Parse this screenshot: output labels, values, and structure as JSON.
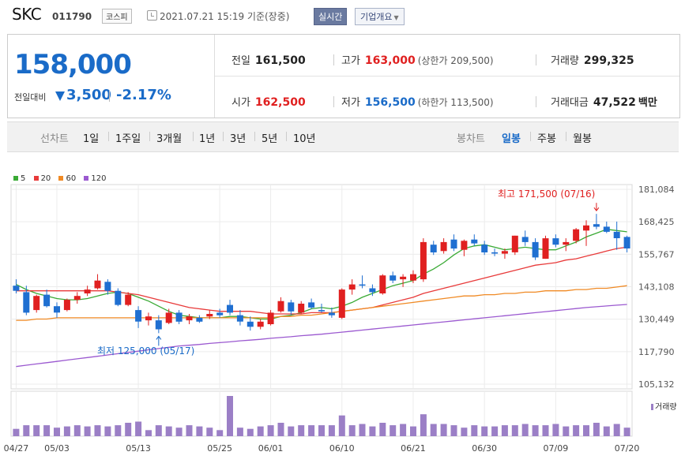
{
  "header": {
    "company": "SKC",
    "code": "011790",
    "market": "코스피",
    "datetime": "2021.07.21 15:19 기준(장중)",
    "realtime_btn": "실시간",
    "overview_btn": "기업개요"
  },
  "quote": {
    "price": "158,000",
    "change_label": "전일대비",
    "change_value": "3,500",
    "change_pct": "-2.17%",
    "prev_close_label": "전일",
    "prev_close": "161,500",
    "high_label": "고가",
    "high": "163,000",
    "upper_limit": "(상한가 209,500)",
    "volume_label": "거래량",
    "volume": "299,325",
    "open_label": "시가",
    "open": "162,500",
    "low_label": "저가",
    "low": "156,500",
    "lower_limit": "(하한가 113,500)",
    "amount_label": "거래대금",
    "amount": "47,522",
    "amount_unit": "백만"
  },
  "tabs": {
    "line_chart": "선차트",
    "ranges": [
      "1일",
      "1주일",
      "3개월",
      "1년",
      "3년",
      "5년",
      "10년"
    ],
    "candle_chart": "봉차트",
    "candle": [
      "일봉",
      "주봉",
      "월봉"
    ],
    "active_candle": "일봉"
  },
  "legend": [
    {
      "label": "5",
      "color": "#3aaa35"
    },
    {
      "label": "20",
      "color": "#e83a3a"
    },
    {
      "label": "60",
      "color": "#f08a24"
    },
    {
      "label": "120",
      "color": "#9b59d0"
    }
  ],
  "annotations": {
    "max_label": "최고 171,500 (07/16)",
    "min_label": "최저 125,000 (05/17)"
  },
  "volume_label": "거래량",
  "chart_data": {
    "type": "candlestick",
    "y_ticks": [
      "181,084",
      "168,425",
      "155,767",
      "143,108",
      "130,449",
      "117,790",
      "105,132"
    ],
    "ylim": [
      105132,
      181084
    ],
    "x_ticks": [
      {
        "label": "04/27",
        "index": 0
      },
      {
        "label": "05/03",
        "index": 4
      },
      {
        "label": "05/13",
        "index": 12
      },
      {
        "label": "05/25",
        "index": 20
      },
      {
        "label": "06/01",
        "index": 25
      },
      {
        "label": "06/10",
        "index": 32
      },
      {
        "label": "06/21",
        "index": 39
      },
      {
        "label": "06/30",
        "index": 46
      },
      {
        "label": "07/09",
        "index": 53
      },
      {
        "label": "07/20",
        "index": 60
      }
    ],
    "candles": [
      [
        143500,
        146000,
        140500,
        141500
      ],
      [
        141000,
        143500,
        132000,
        133000
      ],
      [
        134000,
        140000,
        133000,
        139500
      ],
      [
        140000,
        142000,
        135000,
        135500
      ],
      [
        135500,
        137000,
        131000,
        133000
      ],
      [
        134000,
        138500,
        133500,
        138000
      ],
      [
        138000,
        141000,
        136500,
        139500
      ],
      [
        140500,
        143500,
        139500,
        142000
      ],
      [
        142500,
        148000,
        142000,
        145500
      ],
      [
        145000,
        146000,
        140000,
        141500
      ],
      [
        141500,
        142500,
        135500,
        136000
      ],
      [
        136000,
        141000,
        135500,
        140000
      ],
      [
        134000,
        135500,
        127000,
        129500
      ],
      [
        130000,
        133000,
        128000,
        131500
      ],
      [
        130000,
        132000,
        125000,
        126500
      ],
      [
        129000,
        134500,
        128500,
        133000
      ],
      [
        133000,
        134000,
        128500,
        129500
      ],
      [
        130000,
        132500,
        128500,
        131500
      ],
      [
        131000,
        132000,
        129000,
        129500
      ],
      [
        131500,
        134000,
        130500,
        132500
      ],
      [
        133000,
        134500,
        131000,
        132000
      ],
      [
        136000,
        138000,
        132000,
        133000
      ],
      [
        132000,
        134000,
        128000,
        129500
      ],
      [
        129500,
        131500,
        126000,
        127500
      ],
      [
        127500,
        130500,
        126500,
        129500
      ],
      [
        128500,
        134000,
        128000,
        133000
      ],
      [
        133500,
        139000,
        133000,
        137500
      ],
      [
        137000,
        138000,
        132000,
        133500
      ],
      [
        133000,
        137500,
        132500,
        136500
      ],
      [
        137000,
        138500,
        134500,
        135000
      ],
      [
        134000,
        136500,
        133000,
        133500
      ],
      [
        133000,
        135000,
        131000,
        132000
      ],
      [
        131000,
        142500,
        130500,
        142000
      ],
      [
        142000,
        146000,
        140000,
        144000
      ],
      [
        144000,
        147500,
        142500,
        143500
      ],
      [
        142500,
        144000,
        139500,
        141000
      ],
      [
        140500,
        148000,
        140000,
        147500
      ],
      [
        147500,
        149000,
        144500,
        145500
      ],
      [
        146000,
        148000,
        143000,
        147000
      ],
      [
        145500,
        149500,
        144500,
        148000
      ],
      [
        146000,
        162000,
        145000,
        160500
      ],
      [
        159500,
        161000,
        155500,
        156500
      ],
      [
        157000,
        162000,
        156000,
        160500
      ],
      [
        161500,
        163500,
        157000,
        158000
      ],
      [
        157500,
        161500,
        155000,
        161000
      ],
      [
        161500,
        163500,
        159000,
        160000
      ],
      [
        159500,
        161000,
        155500,
        156500
      ],
      [
        156500,
        158000,
        155000,
        156000
      ],
      [
        156000,
        158000,
        154000,
        157000
      ],
      [
        156500,
        163000,
        155500,
        163000
      ],
      [
        162500,
        165000,
        159000,
        160500
      ],
      [
        160500,
        162000,
        153500,
        154500
      ],
      [
        154000,
        163000,
        154000,
        162000
      ],
      [
        162000,
        163500,
        158500,
        159500
      ],
      [
        159500,
        162000,
        157000,
        160500
      ],
      [
        161000,
        166000,
        160000,
        165500
      ],
      [
        165000,
        169000,
        159000,
        167000
      ],
      [
        167500,
        171500,
        165500,
        166500
      ],
      [
        166500,
        168500,
        164000,
        164500
      ],
      [
        164500,
        168500,
        157500,
        162000
      ],
      [
        162500,
        163000,
        156500,
        158000
      ]
    ],
    "ma": [
      {
        "name": "5",
        "values": [
          144000,
          142000,
          140500,
          139500,
          138500,
          138000,
          138000,
          138500,
          139500,
          140500,
          141000,
          140500,
          139000,
          137500,
          135500,
          133500,
          132000,
          131500,
          131000,
          131000,
          131000,
          131500,
          131500,
          131000,
          130500,
          130500,
          131500,
          132000,
          133000,
          134500,
          135000,
          134500,
          135500,
          137000,
          139000,
          140500,
          142000,
          143500,
          144500,
          145500,
          148000,
          150000,
          152500,
          155500,
          158000,
          159000,
          159500,
          158500,
          157500,
          158000,
          158500,
          158000,
          157500,
          157500,
          159000,
          160500,
          162500,
          164000,
          165500,
          165000,
          164500
        ]
      },
      {
        "name": "20",
        "values": [
          141500,
          141500,
          141500,
          141500,
          141500,
          141500,
          141500,
          141500,
          141500,
          141500,
          141000,
          140500,
          140000,
          139000,
          138000,
          137000,
          136000,
          135000,
          134500,
          134000,
          133500,
          133500,
          133500,
          133500,
          133000,
          132500,
          132500,
          132500,
          132500,
          133000,
          133000,
          133000,
          133500,
          134000,
          134500,
          135000,
          136000,
          137000,
          138000,
          139000,
          140500,
          141500,
          142500,
          143500,
          144500,
          145500,
          146500,
          147500,
          148500,
          149500,
          150500,
          151500,
          152000,
          152500,
          153500,
          154000,
          155000,
          156000,
          157000,
          158000,
          158500
        ]
      },
      {
        "name": "60",
        "values": [
          130000,
          130000,
          130500,
          130500,
          131000,
          131000,
          131000,
          131000,
          131000,
          131000,
          131000,
          131000,
          131000,
          131000,
          131000,
          131000,
          131000,
          131000,
          131000,
          131000,
          131000,
          131000,
          131000,
          131000,
          131000,
          131000,
          131500,
          131500,
          132000,
          132000,
          132500,
          133000,
          133500,
          134000,
          134500,
          135000,
          135500,
          136000,
          136500,
          137000,
          137500,
          138000,
          138500,
          139000,
          139500,
          139500,
          140000,
          140000,
          140500,
          140500,
          141000,
          141000,
          141500,
          141500,
          141500,
          142000,
          142000,
          142500,
          142500,
          143000,
          143500
        ]
      },
      {
        "name": "120",
        "values": [
          112000,
          112500,
          113000,
          113500,
          114000,
          114500,
          115000,
          115500,
          116000,
          116500,
          117000,
          117500,
          118000,
          118500,
          119000,
          119500,
          120000,
          120300,
          120600,
          121000,
          121300,
          121600,
          122000,
          122300,
          122600,
          123000,
          123300,
          123600,
          124000,
          124300,
          124600,
          125000,
          125400,
          125800,
          126200,
          126600,
          127000,
          127400,
          127800,
          128200,
          128600,
          129000,
          129400,
          129800,
          130200,
          130600,
          131000,
          131400,
          131800,
          132200,
          132600,
          133000,
          133400,
          133800,
          134200,
          134600,
          135000,
          135300,
          135600,
          135900,
          136200
        ]
      }
    ],
    "volume": [
      6,
      9,
      9,
      9,
      7,
      8,
      9,
      8,
      9,
      8,
      9,
      11,
      12,
      5,
      9,
      8,
      7,
      9,
      8,
      7,
      5,
      33,
      7,
      6,
      8,
      9,
      11,
      8,
      9,
      9,
      9,
      9,
      17,
      9,
      10,
      8,
      11,
      9,
      10,
      8,
      18,
      10,
      10,
      9,
      7,
      9,
      8,
      8,
      9,
      9,
      10,
      9,
      9,
      10,
      8,
      9,
      9,
      11,
      8,
      10,
      7
    ]
  }
}
